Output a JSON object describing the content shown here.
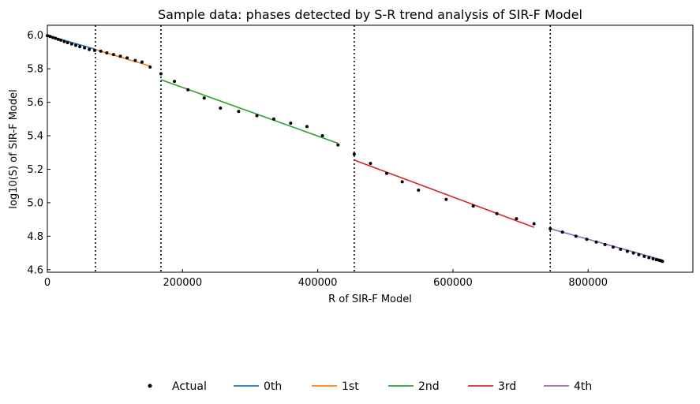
{
  "chart_data": {
    "type": "line",
    "title": "Sample data: phases detected by S-R trend analysis of SIR-F Model",
    "xlabel": "R of SIR-F Model",
    "ylabel": "log10(S) of SIR-F Model",
    "xlim": [
      0,
      955000
    ],
    "ylim": [
      4.585,
      6.06
    ],
    "xticks": [
      0,
      200000,
      400000,
      600000,
      800000
    ],
    "xtick_labels": [
      "0",
      "200000",
      "400000",
      "600000",
      "800000"
    ],
    "yticks": [
      4.6,
      4.8,
      5.0,
      5.2,
      5.4,
      5.6,
      5.8,
      6.0
    ],
    "ytick_labels": [
      "4.6",
      "4.8",
      "5.0",
      "5.2",
      "5.4",
      "5.6",
      "5.8",
      "6.0"
    ],
    "legend_position": "bottom-center",
    "grid": false,
    "phase_boundaries": [
      71000,
      168000,
      454000,
      744000
    ],
    "actual": {
      "name": "Actual",
      "color": "#000000",
      "x": [
        0,
        4000,
        8000,
        12000,
        16000,
        20000,
        25000,
        30000,
        36000,
        42000,
        48000,
        55000,
        62000,
        70000,
        79000,
        88000,
        98000,
        108000,
        118000,
        130000,
        140000,
        152000,
        168000,
        188000,
        208000,
        232000,
        256000,
        283000,
        310000,
        335000,
        360000,
        384000,
        407000,
        430000,
        454000,
        478000,
        502000,
        525000,
        549000,
        590000,
        630000,
        665000,
        694000,
        720000,
        744000,
        762000,
        782000,
        798000,
        812000,
        825000,
        837000,
        848000,
        858000,
        867000,
        875000,
        883000,
        890000,
        896000,
        901000,
        905000,
        908000,
        910000
      ],
      "y": [
        5.998,
        5.993,
        5.987,
        5.982,
        5.976,
        5.971,
        5.963,
        5.956,
        5.948,
        5.94,
        5.932,
        5.925,
        5.915,
        5.91,
        5.905,
        5.895,
        5.885,
        5.875,
        5.865,
        5.85,
        5.84,
        5.81,
        5.77,
        5.725,
        5.675,
        5.625,
        5.565,
        5.545,
        5.52,
        5.5,
        5.475,
        5.455,
        5.4,
        5.345,
        5.29,
        5.235,
        5.175,
        5.125,
        5.075,
        5.02,
        4.98,
        4.935,
        4.905,
        4.875,
        4.845,
        4.825,
        4.8,
        4.782,
        4.765,
        4.75,
        4.735,
        4.722,
        4.71,
        4.7,
        4.69,
        4.68,
        4.672,
        4.665,
        4.66,
        4.656,
        4.653,
        4.65
      ]
    },
    "series": [
      {
        "name": "0th",
        "color": "#1f77b4",
        "x": [
          0,
          71000
        ],
        "y": [
          5.999,
          5.917
        ]
      },
      {
        "name": "1st",
        "color": "#ff7f0e",
        "x": [
          71000,
          153000
        ],
        "y": [
          5.915,
          5.815
        ]
      },
      {
        "name": "2nd",
        "color": "#2ca02c",
        "x": [
          168000,
          430000
        ],
        "y": [
          5.735,
          5.355
        ]
      },
      {
        "name": "3rd",
        "color": "#d62728",
        "x": [
          454000,
          720000
        ],
        "y": [
          5.255,
          4.853
        ]
      },
      {
        "name": "4th",
        "color": "#9467bd",
        "x": [
          744000,
          910000
        ],
        "y": [
          4.845,
          4.658
        ]
      }
    ]
  }
}
